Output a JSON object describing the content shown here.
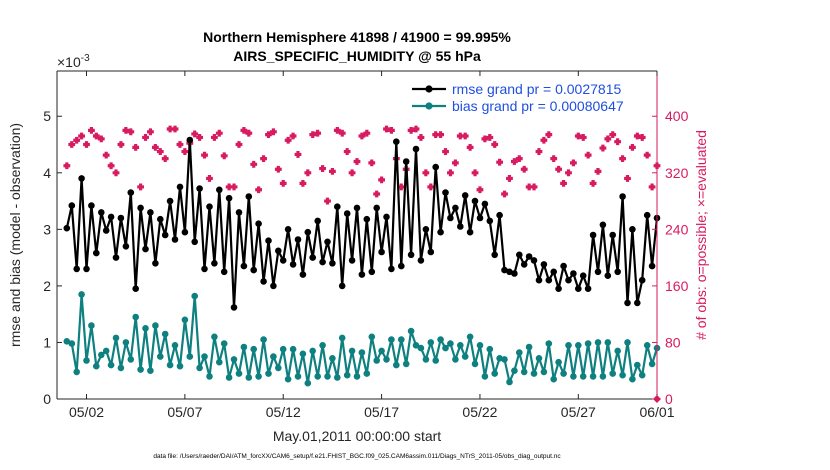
{
  "chart_data": {
    "type": "line",
    "title_line1": "Northern Hemisphere 41898 / 41900 = 99.995%",
    "title_line2": "AIRS_SPECIFIC_HUMIDITY @ 55 hPa",
    "xlabel": "May.01,2011 00:00:00 start",
    "ylabel_left": "rmse and bias (model - observation)",
    "ylabel_right": "# of obs: o=possible; ×=evaluated",
    "scale_exponent": "×10",
    "scale_exponent_power": "-3",
    "footnote": "data file: /Users/raeder/DAI/ATM_forcXX/CAM6_setup/f.e21.FHIST_BGC.f09_025.CAM6assim.011/Diags_NTrS_2011-05/obs_diag_output.nc",
    "x_range_days": [
      0.5,
      31.0
    ],
    "x_ticks": [
      {
        "day": 2,
        "label": "05/02"
      },
      {
        "day": 7,
        "label": "05/07"
      },
      {
        "day": 12,
        "label": "05/12"
      },
      {
        "day": 17,
        "label": "05/17"
      },
      {
        "day": 22,
        "label": "05/22"
      },
      {
        "day": 27,
        "label": "05/27"
      },
      {
        "day": 32,
        "label": "06/01"
      }
    ],
    "ylim_left": [
      0,
      5.8
    ],
    "yticks_left": [
      "0",
      "1",
      "2",
      "3",
      "4",
      "5"
    ],
    "ylim_right": [
      0,
      464
    ],
    "yticks_right": [
      "0",
      "80",
      "160",
      "240",
      "320",
      "400"
    ],
    "colors": {
      "rmse": "#000000",
      "bias": "#0f8080",
      "obs": "#d81b60",
      "legend_text": "#1f4fe0",
      "right_axis": "#d81b60"
    },
    "legend_position": "top-right",
    "series": [
      {
        "name": "rmse grand pr = 0.0027815",
        "key": "rmse",
        "values": [
          3.02,
          3.42,
          2.3,
          3.9,
          2.3,
          3.42,
          2.58,
          3.3,
          2.98,
          3.22,
          2.5,
          3.2,
          2.7,
          3.65,
          1.95,
          3.38,
          2.65,
          3.3,
          2.4,
          3.18,
          2.9,
          3.5,
          2.82,
          3.75,
          2.95,
          4.58,
          2.78,
          3.72,
          2.3,
          3.4,
          2.4,
          3.7,
          2.25,
          3.55,
          1.62,
          3.3,
          2.35,
          3.58,
          2.28,
          3.1,
          2.08,
          2.8,
          2.0,
          2.62,
          2.45,
          3.0,
          2.38,
          2.82,
          2.2,
          2.95,
          2.5,
          3.15,
          2.42,
          2.78,
          2.4,
          3.4,
          2.0,
          3.28,
          2.45,
          3.38,
          2.2,
          3.18,
          2.25,
          3.38,
          2.6,
          3.22,
          2.3,
          4.55,
          2.35,
          4.2,
          2.55,
          4.42,
          2.45,
          3.0,
          2.6,
          4.1,
          2.95,
          3.65,
          3.2,
          3.38,
          3.05,
          3.6,
          2.95,
          3.5,
          3.2,
          3.45,
          3.15,
          2.55,
          3.25,
          2.28,
          2.25,
          2.22,
          2.55,
          2.38,
          2.52,
          2.45,
          2.1,
          2.38,
          2.1,
          2.25,
          1.95,
          2.35,
          2.1,
          2.22,
          1.95,
          2.18,
          1.95,
          2.9,
          2.25,
          3.08,
          2.18,
          2.9,
          2.25,
          3.58,
          1.7,
          3.0,
          1.7,
          2.1,
          3.25,
          2.35,
          3.2,
          2.15,
          3.05,
          2.3,
          3.0,
          2.05,
          2.1,
          1.95,
          2.35,
          2.05,
          2.65,
          2.18,
          2.85,
          3.1,
          2.15,
          1.7,
          2.4,
          2.3,
          2.35,
          3.38
        ]
      },
      {
        "name": "bias grand pr = 0.00080647",
        "key": "bias",
        "values": [
          1.02,
          0.98,
          0.48,
          1.85,
          0.68,
          1.3,
          0.58,
          0.78,
          0.85,
          0.6,
          1.08,
          0.55,
          1.0,
          0.7,
          1.45,
          0.52,
          1.25,
          0.5,
          1.3,
          0.75,
          1.15,
          0.6,
          0.95,
          0.58,
          1.4,
          0.75,
          1.82,
          0.55,
          0.75,
          0.4,
          1.1,
          0.65,
          0.98,
          0.38,
          0.7,
          0.45,
          0.92,
          0.38,
          0.88,
          0.4,
          1.05,
          0.45,
          0.75,
          0.55,
          0.88,
          0.35,
          0.88,
          0.4,
          0.8,
          0.28,
          0.85,
          0.4,
          0.95,
          0.4,
          0.72,
          0.38,
          1.08,
          0.42,
          0.85,
          0.4,
          0.82,
          0.45,
          1.1,
          0.68,
          0.85,
          0.7,
          1.05,
          0.6,
          1.05,
          0.62,
          1.2,
          0.95,
          0.9,
          0.7,
          1.0,
          0.68,
          1.05,
          0.9,
          0.98,
          0.7,
          0.95,
          0.75,
          1.1,
          0.62,
          0.95,
          0.4,
          0.88,
          0.45,
          0.72,
          0.7,
          0.3,
          0.5,
          0.82,
          0.48,
          0.92,
          0.45,
          0.72,
          0.48,
          0.98,
          0.35,
          0.65,
          0.45,
          0.95,
          0.4,
          0.95,
          0.4,
          0.98,
          0.4,
          1.0,
          0.4,
          1.0,
          0.45,
          0.85,
          0.42,
          1.0,
          0.35,
          0.6,
          0.42,
          0.95,
          0.62,
          0.9,
          0.52,
          0.95,
          0.8,
          0.6,
          0.72,
          0.3,
          0.6,
          0.75,
          0.45,
          0.6,
          0.35,
          0.78,
          0.32,
          0.68,
          0.45,
          0.58,
          0.3,
          0.18,
          1.2
        ]
      },
      {
        "name": "# of obs evaluated",
        "key": "obs",
        "values": [
          330,
          360,
          366,
          372,
          360,
          380,
          372,
          368,
          345,
          330,
          320,
          360,
          380,
          378,
          356,
          300,
          370,
          378,
          356,
          350,
          340,
          382,
          382,
          360,
          350,
          362,
          375,
          370,
          345,
          312,
          370,
          376,
          344,
          300,
          300,
          360,
          380,
          376,
          332,
          296,
          340,
          374,
          378,
          325,
          305,
          366,
          372,
          346,
          305,
          320,
          374,
          376,
          326,
          280,
          322,
          380,
          376,
          350,
          320,
          336,
          372,
          376,
          334,
          290,
          310,
          382,
          380,
          340,
          300,
          325,
          380,
          382,
          370,
          320,
          300,
          374,
          374,
          350,
          320,
          334,
          372,
          372,
          356,
          320,
          296,
          368,
          370,
          360,
          335,
          290,
          312,
          336,
          340,
          325,
          300,
          300,
          350,
          366,
          374,
          340,
          325,
          305,
          320,
          334,
          372,
          370,
          345,
          305,
          322,
          355,
          368,
          374,
          364,
          340,
          312,
          356,
          372,
          370,
          345,
          300,
          330,
          360,
          378,
          360,
          330,
          300,
          350,
          370,
          370,
          345,
          305,
          300,
          340,
          368,
          366,
          340,
          308,
          330,
          360,
          368,
          330
        ]
      }
    ]
  }
}
